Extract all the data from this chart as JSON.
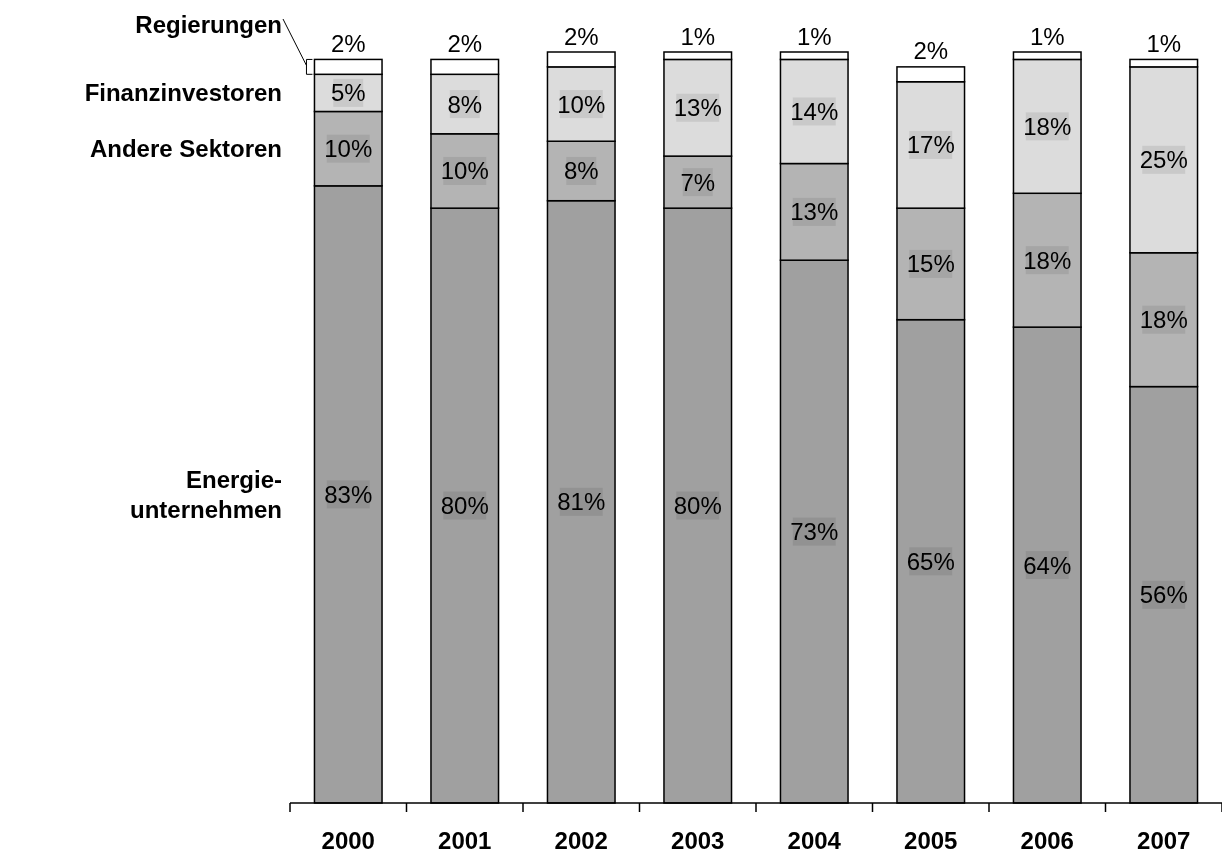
{
  "chart_data": {
    "type": "bar",
    "stacked": true,
    "categories": [
      "2000",
      "2001",
      "2002",
      "2003",
      "2004",
      "2005",
      "2006",
      "2007"
    ],
    "legend": "left",
    "series": [
      {
        "name": "Energie-unternehmen",
        "color": "#a0a0a0",
        "values": [
          83,
          80,
          81,
          80,
          73,
          65,
          64,
          56
        ],
        "value_labels": [
          "83%",
          "80%",
          "81%",
          "80%",
          "73%",
          "65%",
          "64%",
          "56%"
        ]
      },
      {
        "name": "Andere Sektoren",
        "color": "#b4b4b4",
        "values": [
          10,
          10,
          8,
          7,
          13,
          15,
          18,
          18
        ],
        "value_labels": [
          "10%",
          "10%",
          "8%",
          "7%",
          "13%",
          "15%",
          "18%",
          "18%"
        ]
      },
      {
        "name": "Finanzinvestoren",
        "color": "#dcdcdc",
        "values": [
          5,
          8,
          10,
          13,
          14,
          17,
          18,
          25
        ],
        "value_labels": [
          "5%",
          "8%",
          "10%",
          "13%",
          "14%",
          "17%",
          "18%",
          "25%"
        ]
      },
      {
        "name": "Regierungen",
        "color": "#ffffff",
        "values": [
          2,
          2,
          2,
          1,
          1,
          2,
          1,
          1
        ],
        "value_labels": [
          "2%",
          "2%",
          "2%",
          "1%",
          "1%",
          "2%",
          "1%",
          "1%"
        ]
      }
    ]
  }
}
